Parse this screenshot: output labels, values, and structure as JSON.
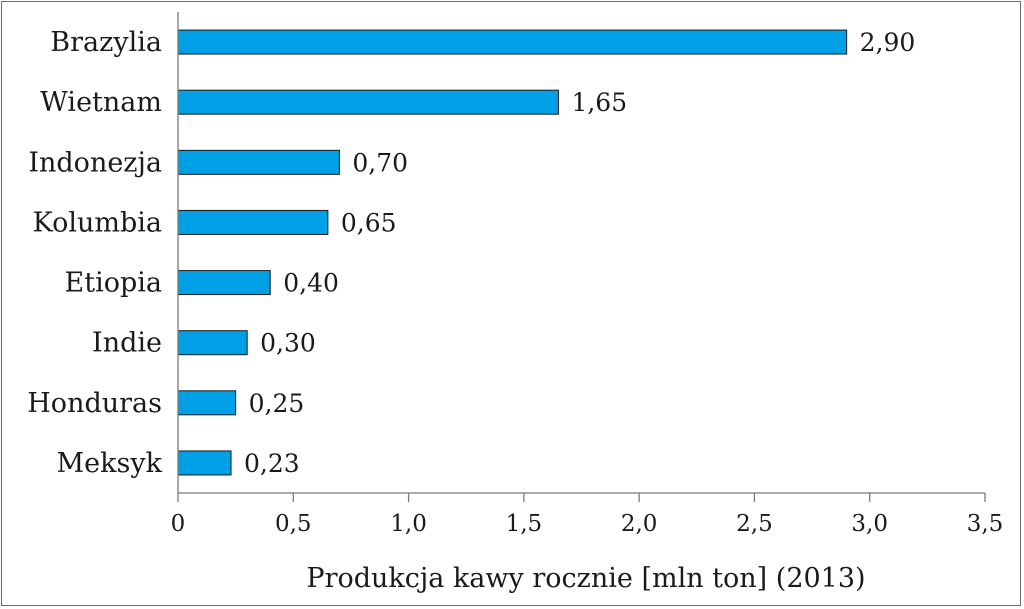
{
  "chart_data": {
    "type": "bar",
    "orientation": "horizontal",
    "categories": [
      "Brazylia",
      "Wietnam",
      "Indonezja",
      "Kolumbia",
      "Etiopia",
      "Indie",
      "Honduras",
      "Meksyk"
    ],
    "values": [
      2.9,
      1.65,
      0.7,
      0.65,
      0.4,
      0.3,
      0.25,
      0.23
    ],
    "value_labels": [
      "2,90",
      "1,65",
      "0,70",
      "0,65",
      "0,40",
      "0,30",
      "0,25",
      "0,23"
    ],
    "xticks": [
      0,
      0.5,
      1.0,
      1.5,
      2.0,
      2.5,
      3.0,
      3.5
    ],
    "xtick_labels": [
      "0",
      "0,5",
      "1,0",
      "1,5",
      "2,0",
      "2,5",
      "3,0",
      "3,5"
    ],
    "xlim": [
      0,
      3.5
    ],
    "title": "",
    "xlabel": "Produkcja kawy rocznie [mln ton] (2013)",
    "ylabel": "",
    "bar_color": "#00a0e6",
    "grid": false
  }
}
